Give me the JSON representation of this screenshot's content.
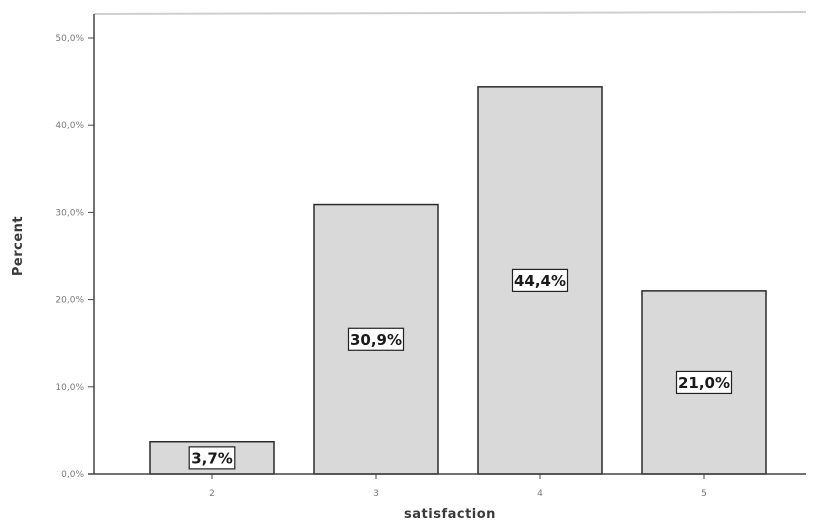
{
  "chart_data": {
    "type": "bar",
    "categories": [
      "2",
      "3",
      "4",
      "5"
    ],
    "values": [
      3.7,
      30.9,
      44.4,
      21.0
    ],
    "data_labels": [
      "3,7%",
      "30,9%",
      "44,4%",
      "21,0%"
    ],
    "y_ticks": [
      0,
      10,
      20,
      30,
      40,
      50
    ],
    "y_tick_labels": [
      "0,0%",
      "10,0%",
      "20,0%",
      "30,0%",
      "40,0%",
      "50,0%"
    ],
    "xlabel": "satisfaction",
    "ylabel": "Percent",
    "ylim": [
      0,
      50
    ],
    "grid": false,
    "colors": {
      "bar_fill": "#d9d9d9",
      "bar_stroke": "#2b2b2b",
      "axis": "#444444",
      "background": "#ffffff"
    }
  }
}
